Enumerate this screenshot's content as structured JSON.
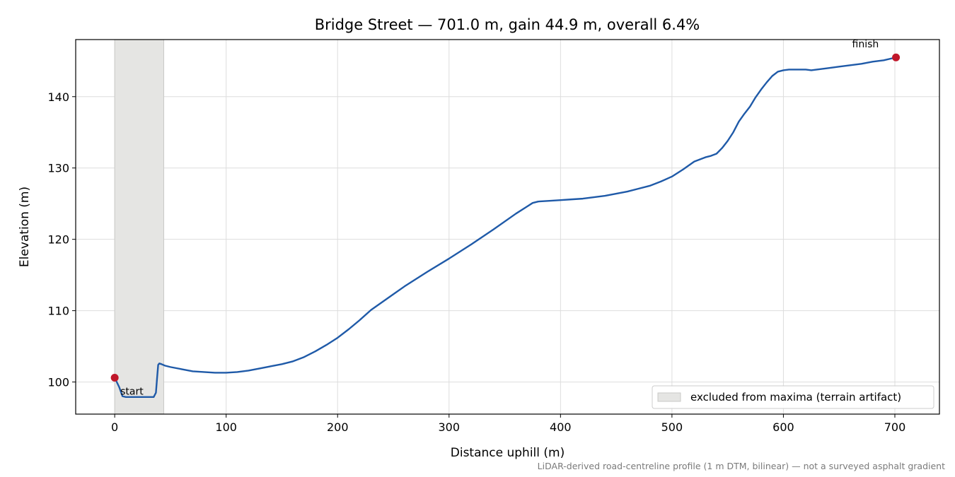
{
  "chart_data": {
    "type": "line",
    "title": "Bridge Street — 701.0 m, gain 44.9 m, overall 6.4%",
    "xlabel": "Distance uphill (m)",
    "ylabel": "Elevation (m)",
    "xlim": [
      -35,
      740
    ],
    "ylim": [
      95.5,
      148
    ],
    "xticks": [
      0,
      100,
      200,
      300,
      400,
      500,
      600,
      700
    ],
    "yticks": [
      100,
      110,
      120,
      130,
      140
    ],
    "grid": true,
    "series": [
      {
        "color": "#1f5aa8",
        "x": [
          0,
          4,
          7,
          10,
          15,
          20,
          25,
          30,
          35,
          37,
          38,
          39,
          40,
          42,
          45,
          50,
          60,
          70,
          80,
          90,
          100,
          110,
          120,
          130,
          140,
          150,
          160,
          170,
          180,
          190,
          200,
          210,
          220,
          230,
          240,
          250,
          260,
          280,
          300,
          320,
          340,
          360,
          370,
          375,
          380,
          390,
          400,
          410,
          420,
          430,
          440,
          450,
          460,
          470,
          480,
          490,
          500,
          510,
          520,
          525,
          530,
          535,
          540,
          545,
          550,
          555,
          560,
          565,
          570,
          575,
          580,
          585,
          590,
          595,
          600,
          605,
          610,
          620,
          625,
          630,
          640,
          650,
          660,
          670,
          680,
          690,
          701
        ],
        "y": [
          100.6,
          99.3,
          98.0,
          97.9,
          97.9,
          97.9,
          97.9,
          97.9,
          97.9,
          98.5,
          100.5,
          102.4,
          102.6,
          102.5,
          102.3,
          102.1,
          101.8,
          101.5,
          101.4,
          101.3,
          101.3,
          101.4,
          101.6,
          101.9,
          102.2,
          102.5,
          102.9,
          103.5,
          104.3,
          105.2,
          106.2,
          107.4,
          108.7,
          110.1,
          111.2,
          112.3,
          113.4,
          115.4,
          117.3,
          119.3,
          121.4,
          123.6,
          124.6,
          125.1,
          125.3,
          125.4,
          125.5,
          125.6,
          125.7,
          125.9,
          126.1,
          126.4,
          126.7,
          127.1,
          127.5,
          128.1,
          128.8,
          129.8,
          130.9,
          131.2,
          131.5,
          131.7,
          132.0,
          132.8,
          133.8,
          135.0,
          136.5,
          137.6,
          138.6,
          139.9,
          141.0,
          142.0,
          142.9,
          143.5,
          143.7,
          143.8,
          143.8,
          143.8,
          143.7,
          143.8,
          144.0,
          144.2,
          144.4,
          144.6,
          144.9,
          145.1,
          145.5
        ]
      }
    ],
    "shaded_region": {
      "x": [
        0,
        44
      ],
      "color": "#e5e5e3",
      "legend_label": "excluded from maxima (terrain artifact)"
    },
    "points": [
      {
        "x": 0,
        "y": 100.6,
        "label": "start",
        "color": "#c0172a"
      },
      {
        "x": 701,
        "y": 145.5,
        "label": "finish",
        "color": "#c0172a"
      }
    ],
    "legend_position": "lower-right",
    "footnote": "LiDAR-derived road-centreline profile (1 m DTM, bilinear) — not a surveyed asphalt gradient"
  }
}
